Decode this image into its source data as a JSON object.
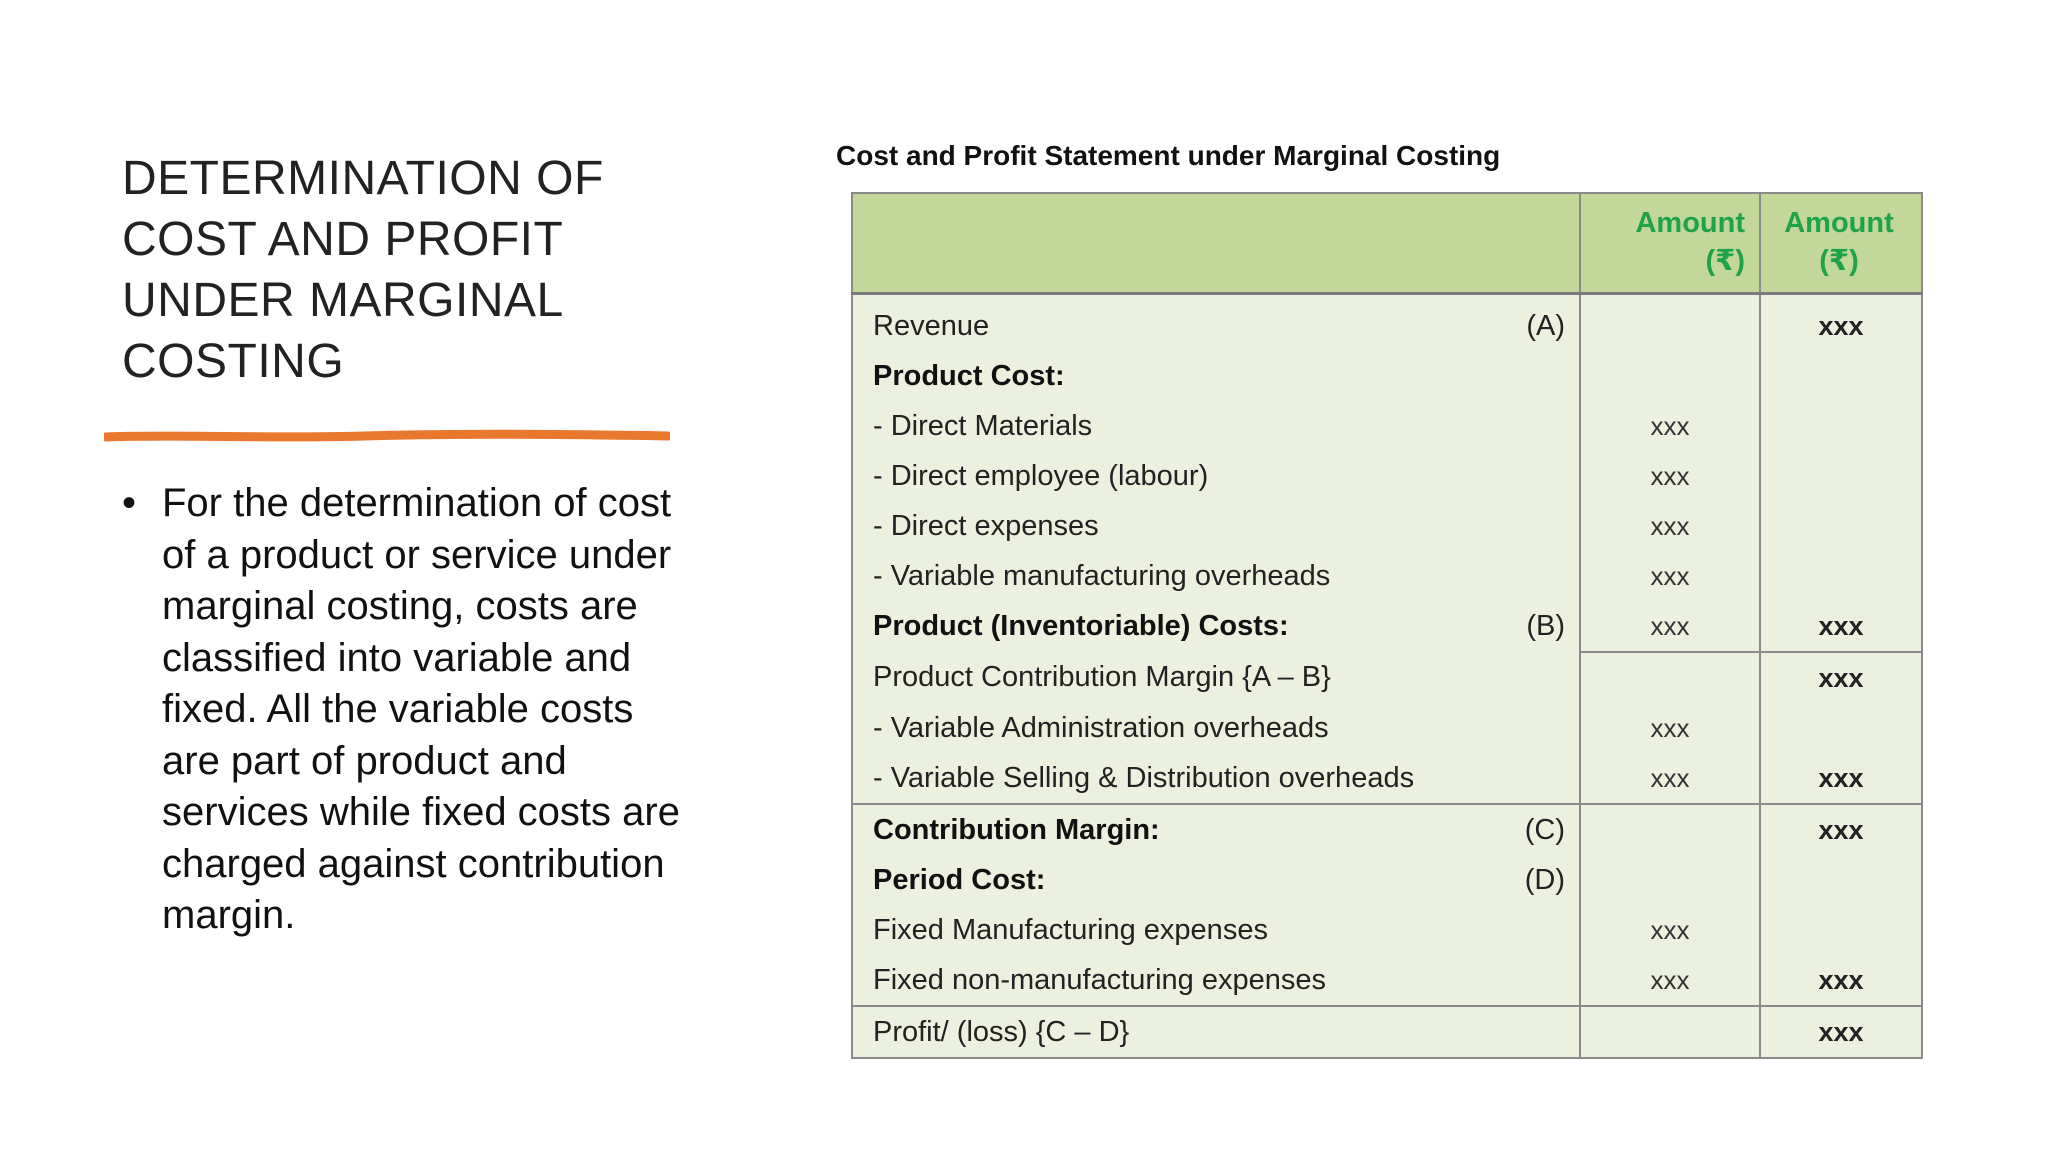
{
  "slide": {
    "title_lines": [
      "DETERMINATION OF",
      "COST AND PROFIT",
      "UNDER MARGINAL",
      "COSTING"
    ],
    "accent_color": "#e8782e",
    "bullets": [
      "For the determination of cost of a product or service under marginal costing, costs are classified into variable and fixed. All the variable costs are part of product and services while fixed costs are charged against contribution margin."
    ]
  },
  "table": {
    "caption": "Cost and Profit Statement under Marginal Costing",
    "header": {
      "label": "",
      "amount1": "Amount (₹)",
      "amount2": "Amount (₹)"
    },
    "header_color": "#c4d79b",
    "header_text_color": "#1fa34a",
    "body_color": "#ebf1de",
    "rows": [
      {
        "label": "Revenue",
        "tag": "(A)",
        "amount1": "",
        "amount2": "xxx",
        "bold": false
      },
      {
        "label": "Product Cost:",
        "tag": "",
        "amount1": "",
        "amount2": "",
        "bold": true
      },
      {
        "label": "- Direct Materials",
        "tag": "",
        "amount1": "xxx",
        "amount2": "",
        "bold": false
      },
      {
        "label": "- Direct employee (labour)",
        "tag": "",
        "amount1": "xxx",
        "amount2": "",
        "bold": false
      },
      {
        "label": "- Direct expenses",
        "tag": "",
        "amount1": "xxx",
        "amount2": "",
        "bold": false
      },
      {
        "label": "- Variable manufacturing overheads",
        "tag": "",
        "amount1": "xxx",
        "amount2": "",
        "bold": false
      },
      {
        "label": "Product (Inventoriable) Costs:",
        "tag": "(B)",
        "amount1": "xxx",
        "amount2": "xxx",
        "bold": true
      },
      {
        "label": "Product Contribution Margin {A – B}",
        "tag": "",
        "amount1": "",
        "amount2": "xxx",
        "bold": false
      },
      {
        "label": "- Variable Administration overheads",
        "tag": "",
        "amount1": "xxx",
        "amount2": "",
        "bold": false
      },
      {
        "label": "- Variable Selling & Distribution overheads",
        "tag": "",
        "amount1": "xxx",
        "amount2": "xxx",
        "bold": false
      },
      {
        "label": "Contribution Margin:",
        "tag": "(C)",
        "amount1": "",
        "amount2": "xxx",
        "bold": true
      },
      {
        "label": "Period Cost:",
        "tag": "(D)",
        "amount1": "",
        "amount2": "",
        "bold": true
      },
      {
        "label": "Fixed Manufacturing expenses",
        "tag": "",
        "amount1": "xxx",
        "amount2": "",
        "bold": false
      },
      {
        "label": "Fixed non-manufacturing expenses",
        "tag": "",
        "amount1": "xxx",
        "amount2": "xxx",
        "bold": false
      },
      {
        "label": "Profit/ (loss) {C – D}",
        "tag": "",
        "amount1": "",
        "amount2": "xxx",
        "bold": false
      }
    ]
  }
}
